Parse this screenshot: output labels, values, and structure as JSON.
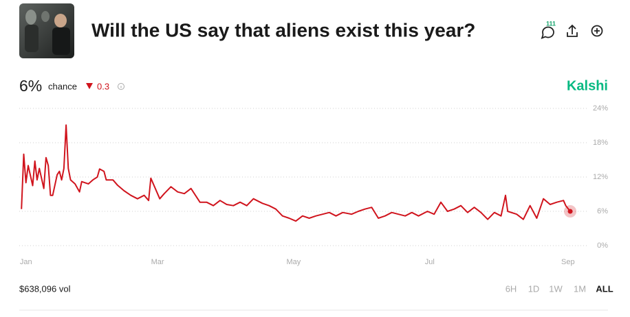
{
  "header": {
    "title": "Will the US say that aliens exist this year?",
    "comments": "111"
  },
  "summary": {
    "chance": "6%",
    "chance_label": "chance",
    "change": "0.3",
    "source": "Kalshi"
  },
  "chart_data": {
    "type": "line",
    "color": "#d0141d",
    "x": [
      -2,
      -1,
      0,
      1,
      3,
      4,
      5,
      6,
      8,
      9,
      10,
      11,
      12,
      14,
      15,
      16,
      17,
      18,
      19,
      20,
      22,
      24,
      25,
      28,
      30,
      32,
      33,
      35,
      36,
      39,
      41,
      44,
      47,
      50,
      53,
      55,
      56,
      58,
      60,
      62,
      65,
      68,
      71,
      74,
      78,
      81,
      84,
      87,
      90,
      93,
      96,
      99,
      102,
      106,
      109,
      112,
      115,
      118,
      121,
      124,
      127,
      130,
      133,
      136,
      139,
      142,
      146,
      149,
      152,
      155,
      158,
      161,
      164,
      167,
      170,
      173,
      176,
      180,
      183,
      186,
      189,
      192,
      195,
      198,
      201,
      204,
      207,
      210,
      213,
      215,
      216,
      220,
      223,
      226,
      229,
      232,
      235,
      238,
      241,
      242,
      244
    ],
    "values": [
      6.4,
      16,
      11,
      14,
      10.5,
      14.8,
      11.5,
      13.5,
      10,
      15.4,
      14,
      8.8,
      8.8,
      12.4,
      13,
      11.5,
      13.5,
      21.1,
      13.5,
      11.5,
      10.8,
      9.4,
      11.2,
      10.8,
      11.5,
      12,
      13.4,
      13,
      11.5,
      11.5,
      10.6,
      9.6,
      8.8,
      8.2,
      8.8,
      7.9,
      11.8,
      10,
      8.2,
      9.1,
      10.3,
      9.4,
      9.1,
      10,
      7.6,
      7.6,
      7,
      7.9,
      7.2,
      7,
      7.6,
      7,
      8.2,
      7.4,
      7,
      6.4,
      5.2,
      4.8,
      4.3,
      5.2,
      4.8,
      5.2,
      5.5,
      5.8,
      5.2,
      5.8,
      5.5,
      6,
      6.4,
      6.7,
      4.8,
      5.2,
      5.8,
      5.5,
      5.2,
      5.8,
      5.2,
      6,
      5.5,
      7.6,
      6,
      6.4,
      7,
      5.8,
      6.7,
      5.8,
      4.6,
      5.8,
      5.2,
      8.8,
      6,
      5.5,
      4.6,
      7,
      4.8,
      8.2,
      7.2,
      7.6,
      7.9,
      7,
      6
    ],
    "xlim": [
      -3,
      252
    ],
    "xticks": [
      {
        "value": 0,
        "label": "Jan"
      },
      {
        "value": 59,
        "label": "Mar"
      },
      {
        "value": 120,
        "label": "May"
      },
      {
        "value": 181,
        "label": "Jul"
      },
      {
        "value": 243,
        "label": "Sep"
      }
    ],
    "ylim": [
      0,
      24
    ],
    "yticks": [
      {
        "value": 0,
        "label": "0%"
      },
      {
        "value": 6,
        "label": "6%"
      },
      {
        "value": 12,
        "label": "12%"
      },
      {
        "value": 18,
        "label": "18%"
      },
      {
        "value": 24,
        "label": "24%"
      }
    ],
    "grid": true
  },
  "footer": {
    "volume": "$638,096 vol",
    "ranges": [
      "6H",
      "1D",
      "1W",
      "1M",
      "ALL"
    ],
    "active_range": 4
  }
}
